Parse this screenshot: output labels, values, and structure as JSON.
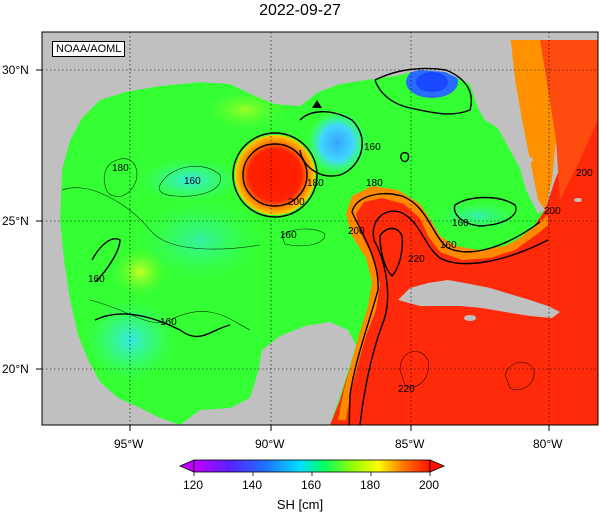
{
  "title": "2022-09-27",
  "credit": "NOAA/AOML",
  "colorbar": {
    "label": "SH [cm]",
    "ticks": [
      "120",
      "140",
      "160",
      "180",
      "200"
    ],
    "colors": [
      "#b400ff",
      "#6600ff",
      "#1e5cff",
      "#00c8ff",
      "#00ffb0",
      "#00ff40",
      "#7cff00",
      "#d6ff00",
      "#ffff00",
      "#ffc000",
      "#ff7a00",
      "#ff3a10",
      "#ff1000"
    ]
  },
  "axes": {
    "lat_labels": [
      "30°N",
      "25°N",
      "20°N"
    ],
    "lon_labels": [
      "95°W",
      "90°W",
      "85°W",
      "80°W"
    ]
  },
  "contour_labels": [
    "180",
    "160",
    "200",
    "180",
    "160",
    "180",
    "200",
    "220",
    "160",
    "200",
    "160",
    "160",
    "160",
    "220",
    "200",
    "160"
  ],
  "colors": {
    "land": "#c0c0c0",
    "ocean_base": "#2dff2d",
    "warm": "#ff2a0a",
    "cool": "#2aa0ff"
  }
}
